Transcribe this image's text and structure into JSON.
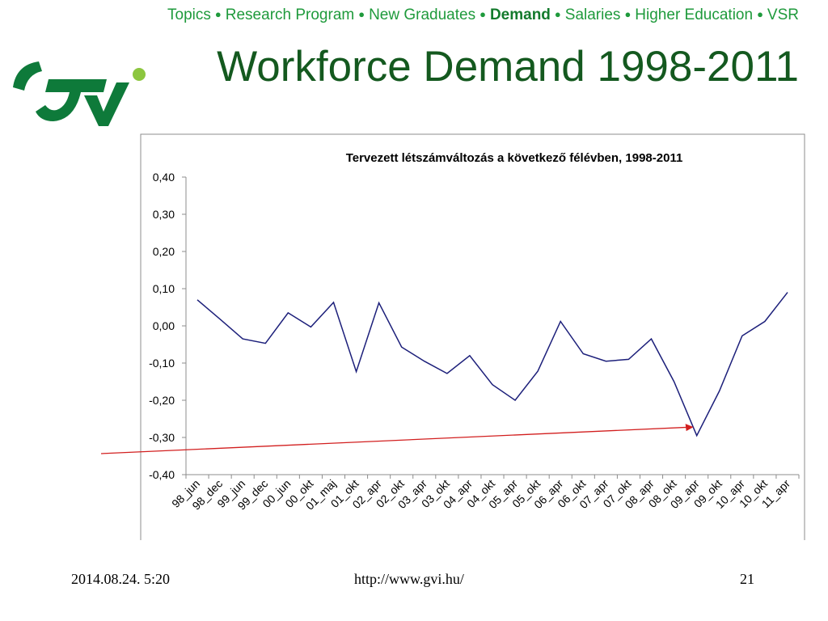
{
  "nav": {
    "items": [
      {
        "label": "Topics",
        "active": false
      },
      {
        "label": "Research Program",
        "active": false
      },
      {
        "label": "New Graduates",
        "active": false
      },
      {
        "label": "Demand",
        "active": true
      },
      {
        "label": "Salaries",
        "active": false
      },
      {
        "label": "Higher Education",
        "active": false
      },
      {
        "label": "VSR",
        "active": false
      }
    ],
    "separator": "●"
  },
  "slide": {
    "title": "Workforce Demand 1998-2011"
  },
  "footer": {
    "date": "2014.08.24. 5:20",
    "url": "http://www.gvi.hu/",
    "page": "21"
  },
  "colors": {
    "nav": "#1f9a3c",
    "title": "#14591f",
    "logo_dark": "#0e7a3a",
    "logo_light": "#8cc63f",
    "line": "#1c1f7a",
    "arrow": "#d21f1f"
  },
  "chart_data": {
    "type": "line",
    "title": "Tervezett létszámváltozás a következő félévben, 1998-2011",
    "xlabel": "",
    "ylabel": "",
    "ylim": [
      -0.4,
      0.4
    ],
    "yticks": [
      "0,40",
      "0,30",
      "0,20",
      "0,10",
      "0,00",
      "-0,10",
      "-0,20",
      "-0,30",
      "-0,40"
    ],
    "grid": false,
    "categories": [
      "98_jun",
      "98_dec",
      "99_jun",
      "99_dec",
      "00_jun",
      "00_okt",
      "01_maj",
      "01_okt",
      "02_apr",
      "02_okt",
      "03_apr",
      "03_okt",
      "04_apr",
      "04_okt",
      "05_apr",
      "05_okt",
      "06_apr",
      "06_okt",
      "07_apr",
      "07_okt",
      "08_apr",
      "08_okt",
      "09_apr",
      "09_okt",
      "10_apr",
      "10_okt",
      "11_apr"
    ],
    "series": [
      {
        "values": [
          0.07,
          0.018,
          -0.035,
          -0.047,
          0.035,
          -0.003,
          0.063,
          -0.123,
          0.062,
          -0.057,
          -0.095,
          -0.128,
          -0.08,
          -0.158,
          -0.2,
          -0.122,
          0.012,
          -0.075,
          -0.095,
          -0.09,
          -0.035,
          -0.15,
          -0.295,
          -0.175,
          -0.027,
          0.012,
          0.09
        ]
      }
    ],
    "annotations": [
      {
        "type": "arrow",
        "points_to": "09_apr",
        "value": -0.272
      }
    ]
  }
}
